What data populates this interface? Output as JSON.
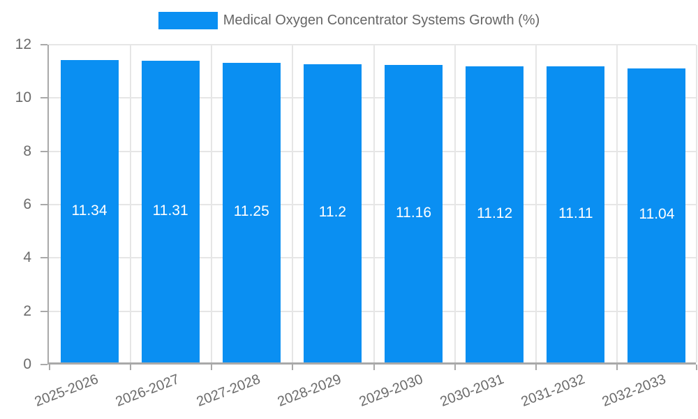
{
  "colors": {
    "bar": "#0a8ff2",
    "grid": "#e6e6e6",
    "axis": "#a9a9a9",
    "tick_label": "#6b6b6b",
    "value_label": "#ffffff",
    "legend_text": "#666666"
  },
  "legend": {
    "label": "Medical Oxygen Concentrator Systems Growth (%)"
  },
  "chart_data": {
    "type": "bar",
    "title": "Medical Oxygen Concentrator Systems Growth (%)",
    "categories": [
      "2025-2026",
      "2026-2027",
      "2027-2028",
      "2028-2029",
      "2029-2030",
      "2030-2031",
      "2031-2032",
      "2032-2033"
    ],
    "values": [
      11.34,
      11.31,
      11.25,
      11.2,
      11.16,
      11.12,
      11.11,
      11.04
    ],
    "value_labels": [
      "11.34",
      "11.31",
      "11.25",
      "11.2",
      "11.16",
      "11.12",
      "11.11",
      "11.04"
    ],
    "xlabel": "",
    "ylabel": "",
    "ylim": [
      0,
      12
    ],
    "yticks": [
      0,
      2,
      4,
      6,
      8,
      10,
      12
    ],
    "grid": true,
    "legend_position": "top",
    "bar_color": "#0a8ff2",
    "value_label_position": "center-inside"
  }
}
